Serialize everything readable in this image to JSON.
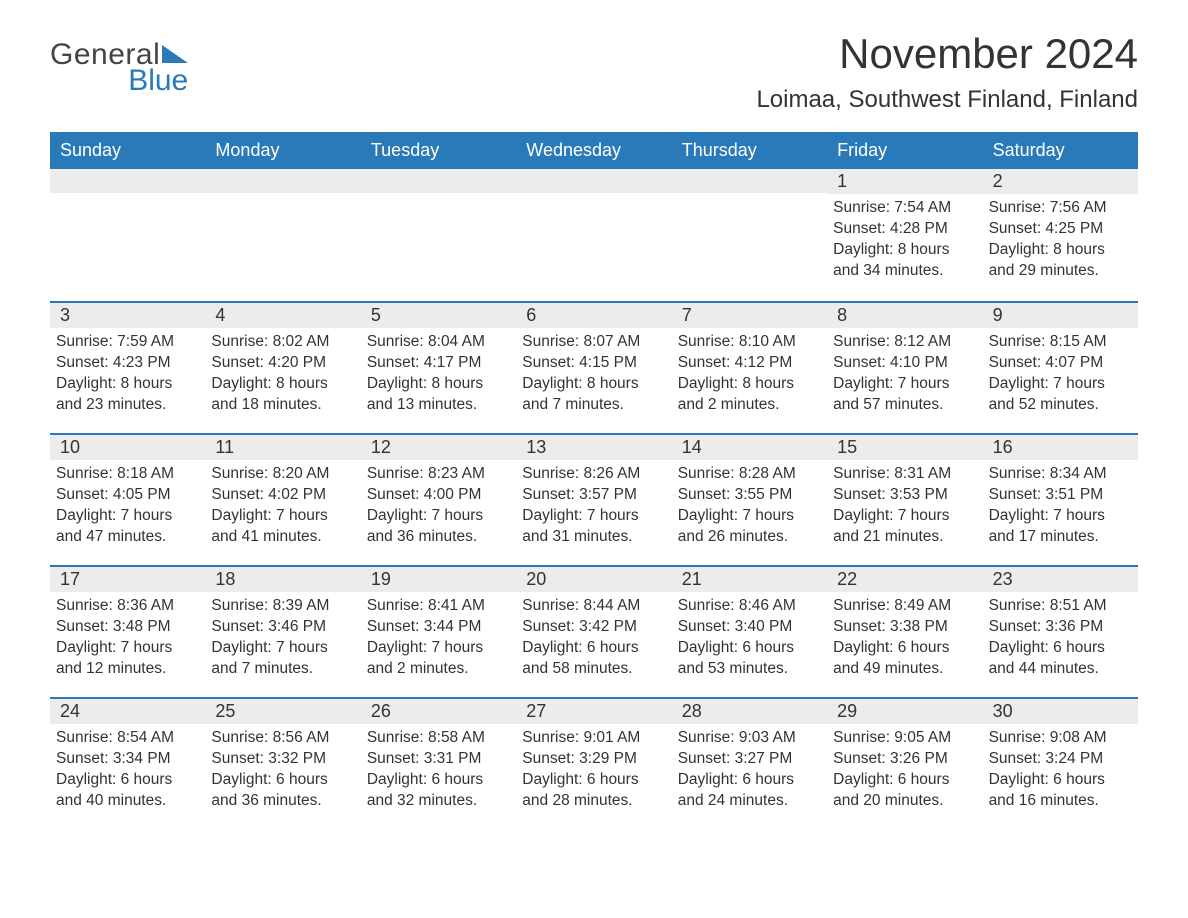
{
  "logo": {
    "text1": "General",
    "text2": "Blue",
    "accent_color": "#2a7ab9"
  },
  "header": {
    "title": "November 2024",
    "location": "Loimaa, Southwest Finland, Finland"
  },
  "calendar": {
    "header_bg": "#2a7ab9",
    "header_fg": "#ffffff",
    "daynum_bg": "#ececec",
    "border_color": "#2a7ab9",
    "text_color": "#333333",
    "body_bg": "#ffffff",
    "fontsize_header": 18,
    "fontsize_daynum": 18,
    "fontsize_body": 15.5,
    "columns": [
      "Sunday",
      "Monday",
      "Tuesday",
      "Wednesday",
      "Thursday",
      "Friday",
      "Saturday"
    ],
    "weeks": [
      [
        {
          "empty": true
        },
        {
          "empty": true
        },
        {
          "empty": true
        },
        {
          "empty": true
        },
        {
          "empty": true
        },
        {
          "n": "1",
          "sunrise": "7:54 AM",
          "sunset": "4:28 PM",
          "dh": "8",
          "dm": "34"
        },
        {
          "n": "2",
          "sunrise": "7:56 AM",
          "sunset": "4:25 PM",
          "dh": "8",
          "dm": "29"
        }
      ],
      [
        {
          "n": "3",
          "sunrise": "7:59 AM",
          "sunset": "4:23 PM",
          "dh": "8",
          "dm": "23"
        },
        {
          "n": "4",
          "sunrise": "8:02 AM",
          "sunset": "4:20 PM",
          "dh": "8",
          "dm": "18"
        },
        {
          "n": "5",
          "sunrise": "8:04 AM",
          "sunset": "4:17 PM",
          "dh": "8",
          "dm": "13"
        },
        {
          "n": "6",
          "sunrise": "8:07 AM",
          "sunset": "4:15 PM",
          "dh": "8",
          "dm": "7"
        },
        {
          "n": "7",
          "sunrise": "8:10 AM",
          "sunset": "4:12 PM",
          "dh": "8",
          "dm": "2"
        },
        {
          "n": "8",
          "sunrise": "8:12 AM",
          "sunset": "4:10 PM",
          "dh": "7",
          "dm": "57"
        },
        {
          "n": "9",
          "sunrise": "8:15 AM",
          "sunset": "4:07 PM",
          "dh": "7",
          "dm": "52"
        }
      ],
      [
        {
          "n": "10",
          "sunrise": "8:18 AM",
          "sunset": "4:05 PM",
          "dh": "7",
          "dm": "47"
        },
        {
          "n": "11",
          "sunrise": "8:20 AM",
          "sunset": "4:02 PM",
          "dh": "7",
          "dm": "41"
        },
        {
          "n": "12",
          "sunrise": "8:23 AM",
          "sunset": "4:00 PM",
          "dh": "7",
          "dm": "36"
        },
        {
          "n": "13",
          "sunrise": "8:26 AM",
          "sunset": "3:57 PM",
          "dh": "7",
          "dm": "31"
        },
        {
          "n": "14",
          "sunrise": "8:28 AM",
          "sunset": "3:55 PM",
          "dh": "7",
          "dm": "26"
        },
        {
          "n": "15",
          "sunrise": "8:31 AM",
          "sunset": "3:53 PM",
          "dh": "7",
          "dm": "21"
        },
        {
          "n": "16",
          "sunrise": "8:34 AM",
          "sunset": "3:51 PM",
          "dh": "7",
          "dm": "17"
        }
      ],
      [
        {
          "n": "17",
          "sunrise": "8:36 AM",
          "sunset": "3:48 PM",
          "dh": "7",
          "dm": "12"
        },
        {
          "n": "18",
          "sunrise": "8:39 AM",
          "sunset": "3:46 PM",
          "dh": "7",
          "dm": "7"
        },
        {
          "n": "19",
          "sunrise": "8:41 AM",
          "sunset": "3:44 PM",
          "dh": "7",
          "dm": "2"
        },
        {
          "n": "20",
          "sunrise": "8:44 AM",
          "sunset": "3:42 PM",
          "dh": "6",
          "dm": "58"
        },
        {
          "n": "21",
          "sunrise": "8:46 AM",
          "sunset": "3:40 PM",
          "dh": "6",
          "dm": "53"
        },
        {
          "n": "22",
          "sunrise": "8:49 AM",
          "sunset": "3:38 PM",
          "dh": "6",
          "dm": "49"
        },
        {
          "n": "23",
          "sunrise": "8:51 AM",
          "sunset": "3:36 PM",
          "dh": "6",
          "dm": "44"
        }
      ],
      [
        {
          "n": "24",
          "sunrise": "8:54 AM",
          "sunset": "3:34 PM",
          "dh": "6",
          "dm": "40"
        },
        {
          "n": "25",
          "sunrise": "8:56 AM",
          "sunset": "3:32 PM",
          "dh": "6",
          "dm": "36"
        },
        {
          "n": "26",
          "sunrise": "8:58 AM",
          "sunset": "3:31 PM",
          "dh": "6",
          "dm": "32"
        },
        {
          "n": "27",
          "sunrise": "9:01 AM",
          "sunset": "3:29 PM",
          "dh": "6",
          "dm": "28"
        },
        {
          "n": "28",
          "sunrise": "9:03 AM",
          "sunset": "3:27 PM",
          "dh": "6",
          "dm": "24"
        },
        {
          "n": "29",
          "sunrise": "9:05 AM",
          "sunset": "3:26 PM",
          "dh": "6",
          "dm": "20"
        },
        {
          "n": "30",
          "sunrise": "9:08 AM",
          "sunset": "3:24 PM",
          "dh": "6",
          "dm": "16"
        }
      ]
    ],
    "labels": {
      "sunrise": "Sunrise:",
      "sunset": "Sunset:",
      "daylight": "Daylight:",
      "hours": "hours",
      "and": "and",
      "minutes": "minutes."
    }
  }
}
